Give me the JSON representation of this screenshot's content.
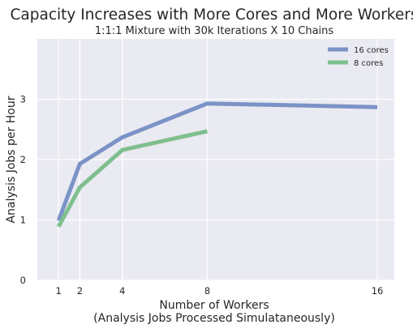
{
  "chart_data": {
    "type": "line",
    "title": "Capacity Increases with More Cores and More Workers",
    "subtitle": "1:1:1 Mixture with 30k Iterations X 10 Chains",
    "xlabel": "Number of Workers",
    "xlabel_sub": "(Analysis Jobs Processed Simulataneously)",
    "ylabel": "Analysis Jobs per Hour",
    "xlim": [
      0.0,
      16.8
    ],
    "ylim": [
      0,
      4
    ],
    "x_ticks": [
      1,
      2,
      4,
      8,
      16
    ],
    "y_ticks": [
      0,
      1,
      2,
      3
    ],
    "grid": true,
    "legend_position": "top-right",
    "series": [
      {
        "name": "16 cores",
        "color": "#7b93c6",
        "x": [
          1,
          2,
          4,
          8,
          16
        ],
        "y": [
          0.99,
          1.93,
          2.37,
          2.93,
          2.87
        ]
      },
      {
        "name": "8 cores",
        "color": "#7fbf8e",
        "x": [
          1,
          2,
          4,
          8
        ],
        "y": [
          0.89,
          1.54,
          2.16,
          2.47
        ]
      }
    ]
  }
}
